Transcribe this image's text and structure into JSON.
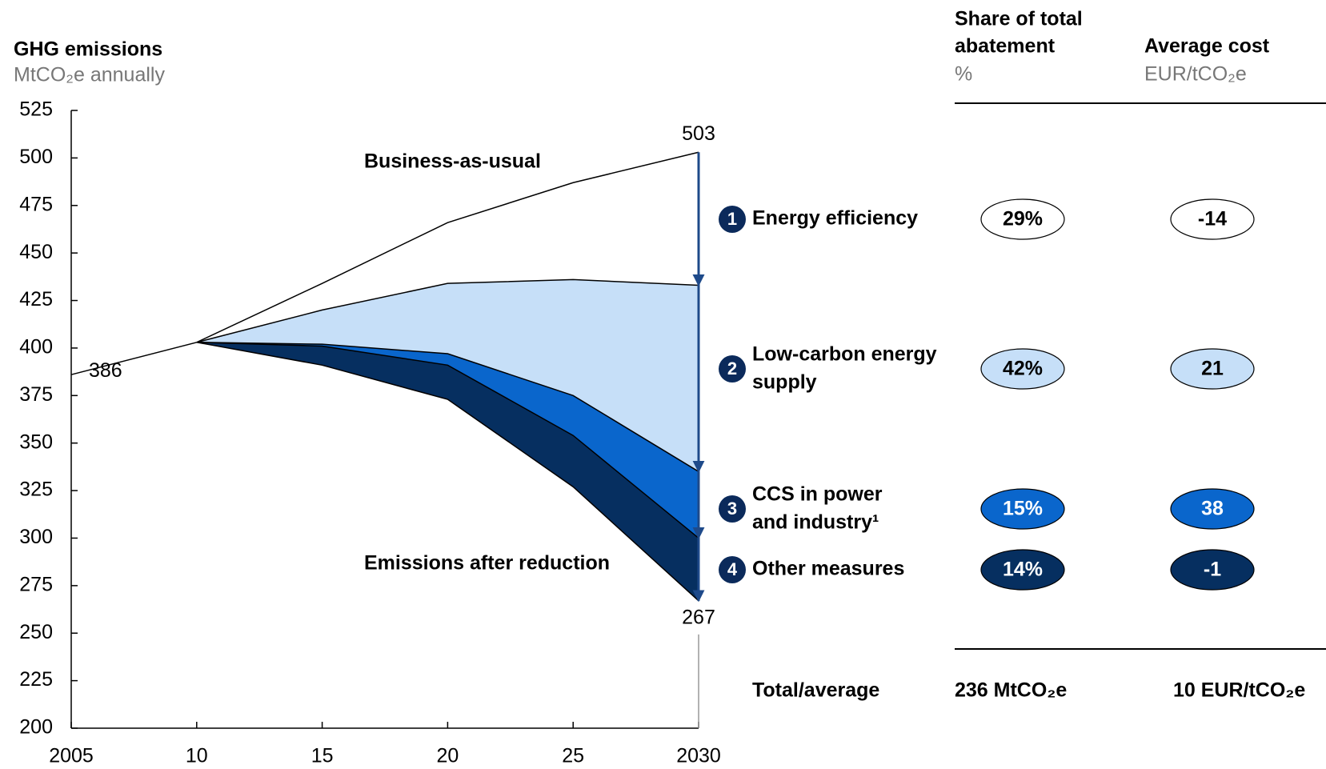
{
  "chart_data": {
    "type": "area",
    "title": "GHG emissions",
    "y_label": "MtCO₂e annually",
    "x": [
      2005,
      2010,
      2015,
      2020,
      2025,
      2030
    ],
    "xlim": [
      2005,
      2030
    ],
    "xticks": [
      2005,
      {
        "value": 2010,
        "label": "10"
      },
      {
        "value": 2015,
        "label": "15"
      },
      {
        "value": 2020,
        "label": "20"
      },
      {
        "value": 2025,
        "label": "25"
      },
      2030
    ],
    "ylim": [
      200,
      525
    ],
    "yticks": [
      200,
      225,
      250,
      275,
      300,
      325,
      350,
      375,
      400,
      425,
      450,
      475,
      500,
      525
    ],
    "series": [
      {
        "name": "Business-as-usual",
        "values": [
          386,
          403,
          434,
          466,
          487,
          503
        ]
      },
      {
        "values": [
          null,
          403,
          420,
          434,
          436,
          433
        ]
      },
      {
        "values": [
          null,
          403,
          402,
          397,
          375,
          335
        ]
      },
      {
        "values": [
          null,
          403,
          401,
          391,
          354,
          300
        ]
      },
      {
        "name": "Emissions after reduction",
        "values": [
          null,
          403,
          391,
          373,
          327,
          267
        ]
      }
    ],
    "table": {
      "headers": [
        {
          "title": [
            "Share of total",
            "abatement"
          ],
          "unit": "%"
        },
        {
          "title": [
            "Average cost"
          ],
          "unit": "EUR/tCO₂e"
        }
      ],
      "measures": [
        {
          "number": "1",
          "label": [
            "Energy efficiency"
          ],
          "share": 29,
          "share_label": "29%",
          "cost": -14,
          "color": "#ffffff",
          "text_color": "#000000"
        },
        {
          "number": "2",
          "label": [
            "Low-carbon energy",
            "supply"
          ],
          "share": 42,
          "share_label": "42%",
          "cost": 21,
          "color": "#c6dff8",
          "text_color": "#000000"
        },
        {
          "number": "3",
          "label": [
            "CCS in power",
            "and industry¹"
          ],
          "share": 15,
          "share_label": "15%",
          "cost": 38,
          "color": "#0a66cc",
          "text_color": "#ffffff"
        },
        {
          "number": "4",
          "label": [
            "Other measures"
          ],
          "share": 14,
          "share_label": "14%",
          "cost": -1,
          "color": "#062f60",
          "text_color": "#ffffff"
        }
      ],
      "total": [
        "Total/average",
        "236 MtCO₂e",
        "10 EUR/tCO₂e"
      ]
    }
  }
}
